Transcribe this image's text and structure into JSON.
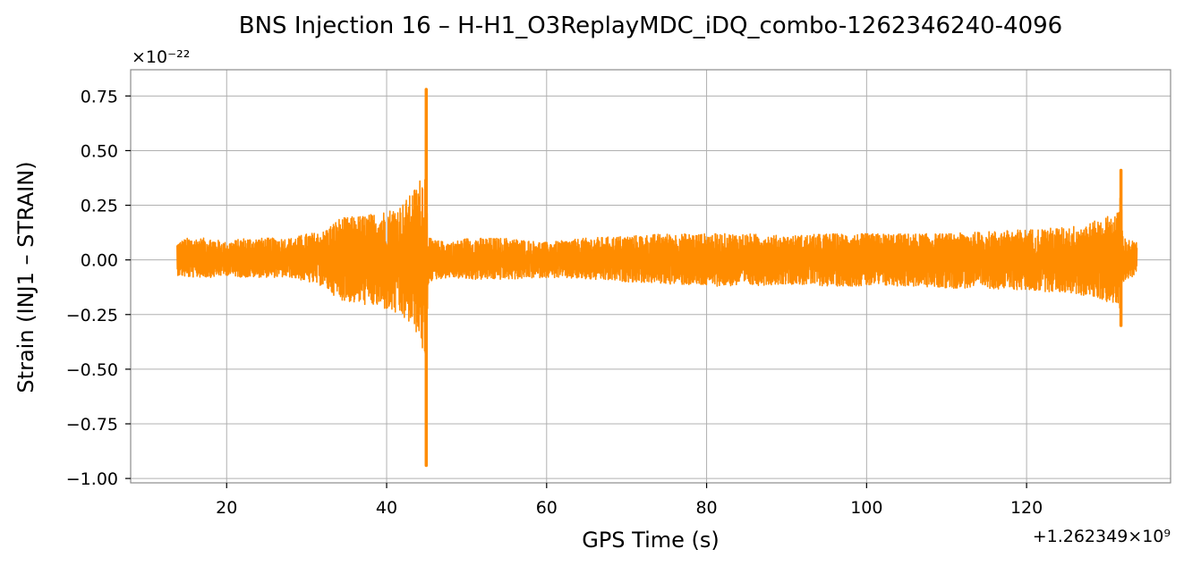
{
  "chart_data": {
    "type": "line",
    "title": "BNS Injection 16 – H-H1_O3ReplayMDC_iDQ_combo-1262346240-4096",
    "xlabel": "GPS Time (s)",
    "ylabel": "Strain (INJ1 – STRAIN)",
    "y_scale_label": "×10⁻²²",
    "x_offset_label": "+1.262349×10⁹",
    "xlim": [
      8,
      138
    ],
    "ylim": [
      -1.02,
      0.87
    ],
    "x_ticks": [
      20,
      40,
      60,
      80,
      100,
      120
    ],
    "x_tick_labels": [
      "20",
      "40",
      "60",
      "80",
      "100",
      "120"
    ],
    "y_ticks": [
      -1.0,
      -0.75,
      -0.5,
      -0.25,
      0.0,
      0.25,
      0.5,
      0.75
    ],
    "y_tick_labels": [
      "−1.00",
      "−0.75",
      "−0.50",
      "−0.25",
      "0.00",
      "0.25",
      "0.50",
      "0.75"
    ],
    "grid": true,
    "series_color": "#ff8c00",
    "x_range": [
      13.8,
      133.8
    ],
    "envelope": {
      "x": [
        13.8,
        15,
        18,
        20,
        22,
        25,
        28,
        30,
        32,
        33,
        34,
        36,
        38,
        40,
        41,
        42,
        43,
        44,
        44.7,
        44.95,
        45.15,
        45.4,
        46,
        48,
        50,
        55,
        60,
        65,
        70,
        75,
        80,
        85,
        90,
        95,
        100,
        105,
        110,
        115,
        120,
        125,
        128,
        130,
        131.5,
        131.8,
        132,
        132.3,
        133,
        133.8
      ],
      "upper": [
        0.08,
        0.1,
        0.1,
        0.08,
        0.1,
        0.1,
        0.1,
        0.12,
        0.13,
        0.16,
        0.19,
        0.2,
        0.21,
        0.23,
        0.24,
        0.26,
        0.3,
        0.36,
        0.42,
        0.78,
        0.12,
        0.1,
        0.09,
        0.08,
        0.1,
        0.1,
        0.08,
        0.1,
        0.11,
        0.12,
        0.12,
        0.12,
        0.11,
        0.12,
        0.12,
        0.12,
        0.12,
        0.13,
        0.14,
        0.15,
        0.17,
        0.2,
        0.22,
        0.41,
        0.12,
        0.1,
        0.09,
        0.08
      ],
      "lower": [
        -0.07,
        -0.08,
        -0.08,
        -0.07,
        -0.08,
        -0.08,
        -0.08,
        -0.1,
        -0.12,
        -0.15,
        -0.18,
        -0.2,
        -0.21,
        -0.23,
        -0.25,
        -0.27,
        -0.3,
        -0.35,
        -0.45,
        -0.94,
        -0.12,
        -0.1,
        -0.09,
        -0.08,
        -0.09,
        -0.09,
        -0.08,
        -0.09,
        -0.1,
        -0.11,
        -0.12,
        -0.12,
        -0.11,
        -0.12,
        -0.12,
        -0.12,
        -0.13,
        -0.13,
        -0.14,
        -0.15,
        -0.17,
        -0.19,
        -0.21,
        -0.3,
        -0.11,
        -0.09,
        -0.08,
        -0.07
      ]
    }
  }
}
